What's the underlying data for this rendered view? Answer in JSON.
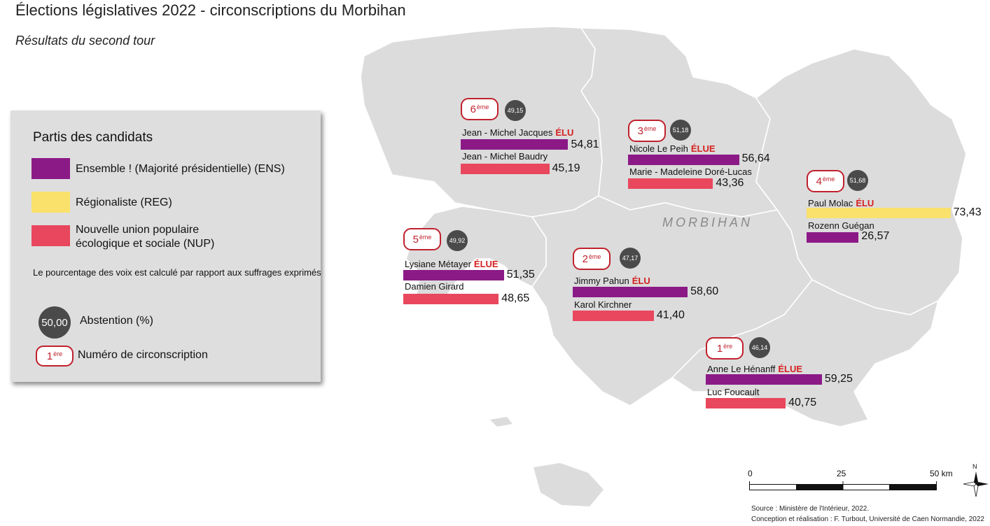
{
  "title": "Élections législatives 2022 - circonscriptions du Morbihan",
  "subtitle": "Résultats du second tour",
  "map_label": "MORBIHAN",
  "colors": {
    "ENS": "#8b1a87",
    "REG": "#f9e16b",
    "NUP": "#e8475e",
    "abstention": "#4a4a4a",
    "elu": "#d4201f",
    "badge_border": "#c0212d",
    "land": "#dcdcdc"
  },
  "legend": {
    "title": "Partis des candidats",
    "items": [
      {
        "key": "ENS",
        "label": "Ensemble ! (Majorité présidentielle) (ENS)"
      },
      {
        "key": "REG",
        "label": "Régionaliste (REG)"
      },
      {
        "key": "NUP",
        "label_line1": "Nouvelle union populaire",
        "label_line2": "écologique et sociale (NUP)"
      }
    ],
    "note": "Le pourcentage des voix est calculé par rapport aux suffrages exprimés",
    "abstention_sample": "50,00",
    "abstention_label": "Abstention (%)",
    "number_sample": "1",
    "number_sample_sup": "ère",
    "number_label": "Numéro de circonscription"
  },
  "constituencies": [
    {
      "num": "6",
      "sup": "ème",
      "abstention": "49,15",
      "candidates": [
        {
          "name": "Jean - Michel Jacques",
          "elected_label": "ÉLU",
          "party": "ENS",
          "value": 54.81,
          "value_text": "54,81"
        },
        {
          "name": "Jean - Michel Baudry",
          "elected_label": "",
          "party": "NUP",
          "value": 45.19,
          "value_text": "45,19"
        }
      ]
    },
    {
      "num": "3",
      "sup": "ème",
      "abstention": "51,18",
      "candidates": [
        {
          "name": "Nicole Le Peih",
          "elected_label": "ÉLUE",
          "party": "ENS",
          "value": 56.64,
          "value_text": "56,64"
        },
        {
          "name": "Marie - Madeleine Doré-Lucas",
          "elected_label": "",
          "party": "NUP",
          "value": 43.36,
          "value_text": "43,36"
        }
      ]
    },
    {
      "num": "4",
      "sup": "ème",
      "abstention": "51,68",
      "candidates": [
        {
          "name": "Paul Molac",
          "elected_label": "ÉLU",
          "party": "REG",
          "value": 73.43,
          "value_text": "73,43"
        },
        {
          "name": "Rozenn Guégan",
          "elected_label": "",
          "party": "ENS",
          "value": 26.57,
          "value_text": "26,57"
        }
      ]
    },
    {
      "num": "5",
      "sup": "ème",
      "abstention": "49,92",
      "candidates": [
        {
          "name": "Lysiane Métayer",
          "elected_label": "ÉLUE",
          "party": "ENS",
          "value": 51.35,
          "value_text": "51,35"
        },
        {
          "name": "Damien Girard",
          "elected_label": "",
          "party": "NUP",
          "value": 48.65,
          "value_text": "48,65"
        }
      ]
    },
    {
      "num": "2",
      "sup": "ème",
      "abstention": "47,17",
      "candidates": [
        {
          "name": "Jimmy Pahun",
          "elected_label": "ÉLU",
          "party": "ENS",
          "value": 58.6,
          "value_text": "58,60"
        },
        {
          "name": "Karol Kirchner",
          "elected_label": "",
          "party": "NUP",
          "value": 41.4,
          "value_text": "41,40"
        }
      ]
    },
    {
      "num": "1",
      "sup": "ère",
      "abstention": "46,14",
      "candidates": [
        {
          "name": "Anne Le Hénanff",
          "elected_label": "ÉLUE",
          "party": "ENS",
          "value": 59.25,
          "value_text": "59,25"
        },
        {
          "name": "Luc Foucault",
          "elected_label": "",
          "party": "NUP",
          "value": 40.75,
          "value_text": "40,75"
        }
      ]
    }
  ],
  "scale": {
    "labels": [
      "0",
      "25",
      "50 km"
    ]
  },
  "north": "N",
  "source": "Source : Ministère de l'Intérieur, 2022.",
  "credits": "Conception et réalisation : F. Turbout, Université de Caen Normandie, 2022"
}
